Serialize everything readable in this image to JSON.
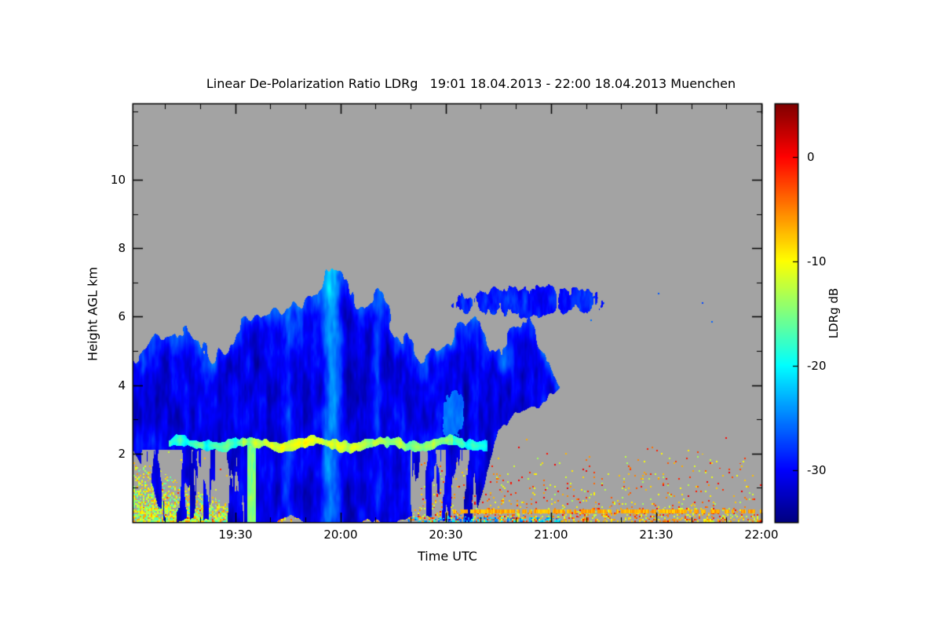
{
  "chart_data": {
    "type": "heatmap",
    "title": "Linear De-Polarization Ratio LDRg   19:01 18.04.2013 - 22:00 18.04.2013 Muenchen",
    "xlabel": "Time UTC",
    "ylabel": "Height AGL km",
    "x_ticks": [
      "19:30",
      "20:00",
      "20:30",
      "21:00",
      "21:30",
      "22:00"
    ],
    "x_tick_minutes": [
      1170,
      1200,
      1230,
      1260,
      1290,
      1320
    ],
    "x_minor_step_minutes": 10,
    "x_range_minutes": [
      1141,
      1320
    ],
    "y_ticks": [
      "2",
      "4",
      "6",
      "8",
      "10"
    ],
    "y_tick_values": [
      2,
      4,
      6,
      8,
      10
    ],
    "ylim": [
      0,
      12.2
    ],
    "grid": false,
    "no_signal_color": "#a3a3a3",
    "colorbar": {
      "label": "LDRg dB",
      "tick_labels": [
        "0",
        "-10",
        "-20",
        "-30"
      ],
      "tick_values": [
        0,
        -10,
        -20,
        -30
      ],
      "vmin": -35,
      "vmax": 5,
      "colormap": "jet"
    },
    "features": [
      {
        "name": "main-cloud",
        "kind": "cloud",
        "t_range": [
          1141,
          1263
        ],
        "top_profile": [
          [
            1141,
            4.7
          ],
          [
            1148,
            5.3
          ],
          [
            1156,
            5.6
          ],
          [
            1164,
            4.8
          ],
          [
            1172,
            5.6
          ],
          [
            1180,
            6.3
          ],
          [
            1190,
            6.6
          ],
          [
            1200,
            7.0
          ],
          [
            1208,
            6.6
          ],
          [
            1216,
            5.7
          ],
          [
            1222,
            4.8
          ],
          [
            1228,
            5.1
          ],
          [
            1234,
            5.9
          ],
          [
            1240,
            5.6
          ],
          [
            1246,
            5.0
          ],
          [
            1252,
            5.5
          ],
          [
            1258,
            5.0
          ],
          [
            1263,
            4.0
          ]
        ],
        "base_profile": [
          [
            1141,
            2.3
          ],
          [
            1145,
            1.8
          ],
          [
            1149,
            0.0
          ],
          [
            1236,
            0.0
          ],
          [
            1241,
            0.8
          ],
          [
            1245,
            2.8
          ],
          [
            1250,
            3.2
          ],
          [
            1257,
            3.5
          ],
          [
            1263,
            3.9
          ]
        ],
        "edge_noise": 0.9,
        "value_base": -31,
        "value_noise": 3.5
      },
      {
        "name": "anvil-cloud",
        "kind": "ellipse",
        "t_center": 1253,
        "h_center": 6.45,
        "t_radius": 26,
        "h_radius": 0.55,
        "edge_noise": 1.3,
        "threshold": 0.5,
        "value_base": -29,
        "value_noise": 3
      },
      {
        "name": "light-patch",
        "kind": "ellipse",
        "t_center": 1232,
        "h_center": 3.1,
        "t_radius": 5,
        "h_radius": 1.0,
        "edge_noise": 0.8,
        "threshold": 0.55,
        "value_base": -25.5,
        "value_noise": 1.5
      },
      {
        "name": "bright-streaks",
        "kind": "streaks",
        "t_centers": [
          1185,
          1197.5,
          1210.5
        ],
        "widths": [
          1.6,
          2.4,
          1.3
        ],
        "strengths": [
          3.5,
          6.5,
          3
        ]
      },
      {
        "name": "precip-gap-left",
        "kind": "gap",
        "t_range": [
          1141,
          1173
        ],
        "h_max": 2.1,
        "threshold": 0.48
      },
      {
        "name": "precip-gap-right",
        "kind": "gap",
        "t_range": [
          1220,
          1243
        ],
        "h_max": 2.1,
        "threshold": 0.55
      },
      {
        "name": "green-column",
        "kind": "column",
        "t_range": [
          1173.5,
          1176
        ],
        "h_max": 2.3,
        "value_base": -15,
        "value_noise": 3
      },
      {
        "name": "melting-layer",
        "kind": "band",
        "t_range": [
          1151,
          1242
        ],
        "h_center": 2.28,
        "wave_amp": 0.09,
        "thickness": 0.12,
        "value_base": -16.5,
        "value_noise": 4,
        "bright_center": 1192,
        "bright_width": 20,
        "bright_gain": 3,
        "cool_left_before": 1172,
        "cool_right_after": 1232
      },
      {
        "name": "clutter-left",
        "kind": "speckle",
        "seed": 11,
        "t_range": [
          1141,
          1172
        ],
        "h_min": 0,
        "h_max": 1.9,
        "h_slope": -0.05,
        "density": 0.85,
        "falloff": 0.7,
        "value_range": [
          -18,
          -6
        ]
      },
      {
        "name": "clutter-bottom",
        "kind": "speckle",
        "seed": 23,
        "t_range": [
          1141,
          1320
        ],
        "h_min": 0,
        "h_max": 0.5,
        "density": 0.4,
        "falloff": 1.2,
        "value_range": [
          -13,
          0
        ]
      },
      {
        "name": "clutter-right",
        "kind": "speckle",
        "seed": 37,
        "t_range": [
          1222,
          1320
        ],
        "h_min": 0,
        "h_max": 2.6,
        "density": 0.12,
        "falloff": 1.6,
        "value_range": [
          -14,
          1
        ]
      },
      {
        "name": "clutter-sparse",
        "kind": "speckle",
        "seed": 51,
        "t_range": [
          1141,
          1222
        ],
        "h_min": 0,
        "h_max": 3.0,
        "density": 0.02,
        "falloff": 1.5,
        "value_range": [
          -13,
          0
        ]
      },
      {
        "name": "cyan-bottom",
        "kind": "speckle",
        "seed": 67,
        "t_range": [
          1219,
          1263
        ],
        "h_min": 0,
        "h_max": 0.2,
        "density": 0.45,
        "falloff": 0.6,
        "overlay": true,
        "value_range": [
          -27,
          -19
        ]
      },
      {
        "name": "blue-specks",
        "kind": "speckle",
        "seed": 83,
        "t_range": [
          1262,
          1315
        ],
        "h_min": 5.6,
        "h_max": 7.4,
        "density": 0.005,
        "falloff": 1,
        "value_range": [
          -29,
          -24
        ]
      },
      {
        "name": "surface-line",
        "kind": "hline",
        "t_range": [
          1232,
          1320
        ],
        "h_center": 0.31,
        "thickness": 0.05,
        "gap_prob": 0.22,
        "value_base": -7,
        "value_noise": 2
      }
    ]
  }
}
